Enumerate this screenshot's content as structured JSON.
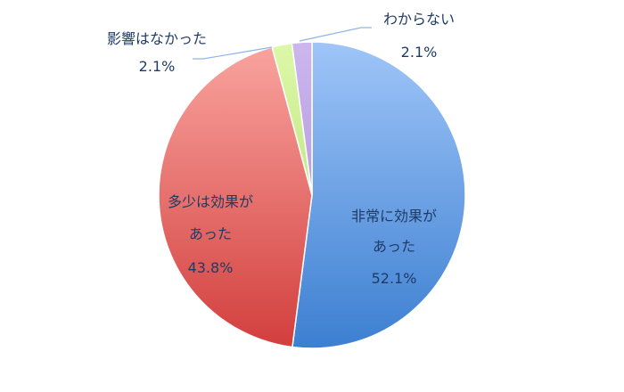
{
  "chart_data": {
    "type": "pie",
    "start": "top",
    "direction": "clockwise",
    "slices": [
      {
        "label_lines": [
          "非常に効果が",
          "あった"
        ],
        "value": 52.1,
        "value_label": "52.1%",
        "color_top": "#9fc5f8",
        "color_bottom": "#3c7fd1"
      },
      {
        "label_lines": [
          "多少は効果が",
          "あった"
        ],
        "value": 43.8,
        "value_label": "43.8%",
        "color_top": "#f9a39e",
        "color_bottom": "#d23f3d"
      },
      {
        "label_lines": [
          "影響はなかった"
        ],
        "value": 2.1,
        "value_label": "2.1%",
        "color_top": "#dcf8a8",
        "color_bottom": "#c5e88a"
      },
      {
        "label_lines": [
          "わからない"
        ],
        "value": 2.1,
        "value_label": "2.1%",
        "color_top": "#cdb6ee",
        "color_bottom": "#b89ee0"
      }
    ],
    "leader_line_color": "#8fb4e3"
  }
}
